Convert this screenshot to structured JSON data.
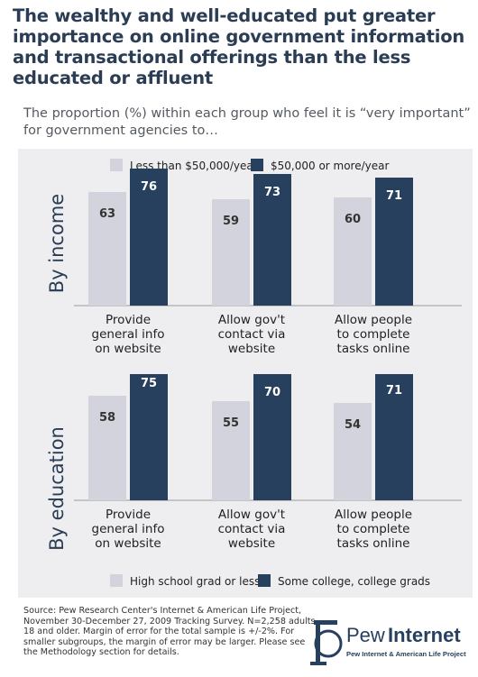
{
  "title": "The wealthy and well-educated put greater importance on online government information and transactional offerings than the less educated or affluent",
  "subtitle": "The proportion (%) within each group who feel it is “very important” for government agencies to…",
  "colors": {
    "light": "#d3d3dd",
    "dark": "#26405e",
    "panel": "#eeeef0",
    "text": "#2b3d54"
  },
  "chart_data": [
    {
      "type": "bar",
      "ylabel": "By income",
      "categories": [
        "Provide general info on website",
        "Allow gov't contact via website",
        "Allow people to complete tasks online"
      ],
      "category_lines": [
        [
          "Provide",
          "general info",
          "on website"
        ],
        [
          "Allow gov't",
          "contact via",
          "website"
        ],
        [
          "Allow people",
          "to complete",
          "tasks online"
        ]
      ],
      "series": [
        {
          "name": "Less than $50,000/year",
          "values": [
            63,
            59,
            60
          ]
        },
        {
          "name": "$50,000 or more/year",
          "values": [
            76,
            73,
            71
          ]
        }
      ],
      "legend": "top"
    },
    {
      "type": "bar",
      "ylabel": "By education",
      "categories": [
        "Provide general info on website",
        "Allow gov't contact via website",
        "Allow people to complete tasks online"
      ],
      "category_lines": [
        [
          "Provide",
          "general info",
          "on website"
        ],
        [
          "Allow gov't",
          "contact via",
          "website"
        ],
        [
          "Allow people",
          "to complete",
          "tasks online"
        ]
      ],
      "series": [
        {
          "name": "High school grad or less",
          "values": [
            58,
            55,
            54
          ]
        },
        {
          "name": "Some college, college grads",
          "values": [
            75,
            70,
            71
          ]
        }
      ],
      "legend": "bottom"
    }
  ],
  "source": "Source: Pew Research Center's Internet & American Life Project, November 30-December 27, 2009 Tracking Survey. N=2,258 adults 18 and older. Margin of error for the total sample is +/-2%. For smaller subgroups, the margin of error may be larger. Please see the Methodology section for details.",
  "logo": {
    "brand_a": "Pew",
    "brand_b": "Internet",
    "tagline": "Pew Internet & American Life Project"
  }
}
